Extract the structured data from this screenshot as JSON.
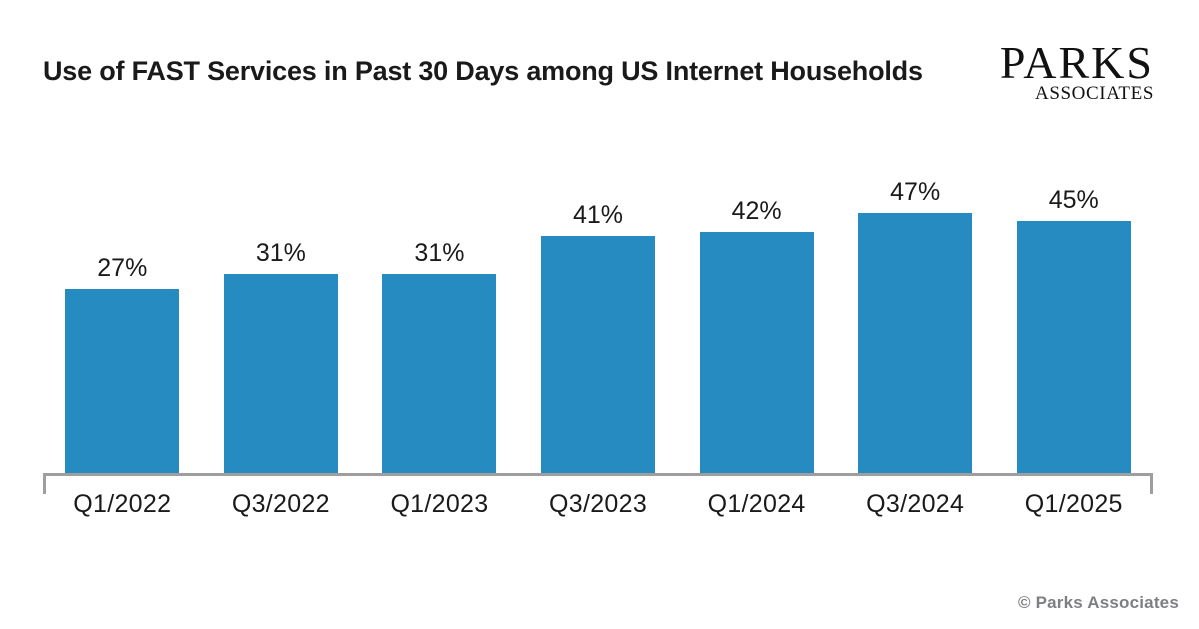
{
  "header": {
    "title": "Use of FAST Services in Past 30 Days among US Internet Households"
  },
  "logo": {
    "line1": "PARKS",
    "line2": "ASSOCIATES"
  },
  "footer": {
    "copyright": "© Parks Associates"
  },
  "colors": {
    "bar": "#268bc1",
    "axis": "#9e9e9e",
    "text": "#1a1a1a",
    "footer_text": "#7d7f82",
    "background": "#ffffff"
  },
  "chart_data": {
    "type": "bar",
    "title": "Use of FAST Services in Past 30 Days among US Internet Households",
    "categories": [
      "Q1/2022",
      "Q3/2022",
      "Q1/2023",
      "Q3/2023",
      "Q1/2024",
      "Q3/2024",
      "Q1/2025"
    ],
    "values": [
      27,
      31,
      31,
      41,
      42,
      47,
      45
    ],
    "value_labels": [
      "27%",
      "31%",
      "31%",
      "41%",
      "42%",
      "47%",
      "45%"
    ],
    "xlabel": "",
    "ylabel": "",
    "ylim": [
      0,
      50
    ],
    "grid": false,
    "legend": false,
    "bar_color": "#268bc1"
  }
}
